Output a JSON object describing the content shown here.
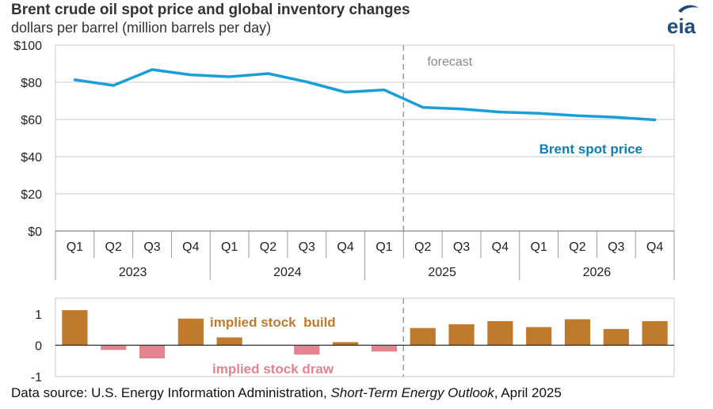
{
  "header": {
    "title": "Brent crude oil spot price and global inventory changes",
    "subtitle": "dollars per barrel (million barrels per day)",
    "logo_text": "eia"
  },
  "footer": {
    "source_prefix": "Data source: U.S. Energy Information Administration, ",
    "source_publication": "Short-Term Energy Outlook",
    "source_suffix": ", April 2025"
  },
  "colors": {
    "price_line": "#1a9ed8",
    "price_label": "#0f7db0",
    "build_bar": "#c07a2e",
    "draw_bar": "#e2848f",
    "forecast_line": "#9a9a9a",
    "grid": "#c8c8c8",
    "logo": "#1f4e79"
  },
  "chart_data": [
    {
      "type": "line",
      "title": "Brent crude oil spot price and global inventory changes",
      "ylabel": "dollars per barrel",
      "ylim": [
        0,
        100
      ],
      "yticks": [
        0,
        20,
        40,
        60,
        80,
        100
      ],
      "ytick_labels": [
        "$0",
        "$20",
        "$40",
        "$60",
        "$80",
        "$100"
      ],
      "grid": true,
      "categories": [
        "Q1",
        "Q2",
        "Q3",
        "Q4",
        "Q1",
        "Q2",
        "Q3",
        "Q4",
        "Q1",
        "Q2",
        "Q3",
        "Q4",
        "Q1",
        "Q2",
        "Q3",
        "Q4"
      ],
      "years": [
        "2023",
        "2024",
        "2025",
        "2026"
      ],
      "forecast_label": "forecast",
      "forecast_start_after_index": 8,
      "series": [
        {
          "name": "Brent spot price",
          "values": [
            81.3,
            78.3,
            86.8,
            84.0,
            83.0,
            84.7,
            80.2,
            74.7,
            75.9,
            66.5,
            65.6,
            64.0,
            63.3,
            62.0,
            61.2,
            59.8
          ]
        }
      ]
    },
    {
      "type": "bar",
      "ylabel": "million barrels per day",
      "ylim": [
        -1,
        1.5
      ],
      "yticks": [
        -1,
        0,
        1
      ],
      "ytick_labels": [
        "-1",
        "0",
        "1"
      ],
      "annotations": [
        "implied stock  build",
        "implied stock draw"
      ],
      "values": [
        1.12,
        -0.15,
        -0.42,
        0.85,
        0.25,
        0.0,
        -0.3,
        0.1,
        -0.2,
        0.55,
        0.67,
        0.77,
        0.58,
        0.83,
        0.52,
        0.77
      ]
    }
  ]
}
